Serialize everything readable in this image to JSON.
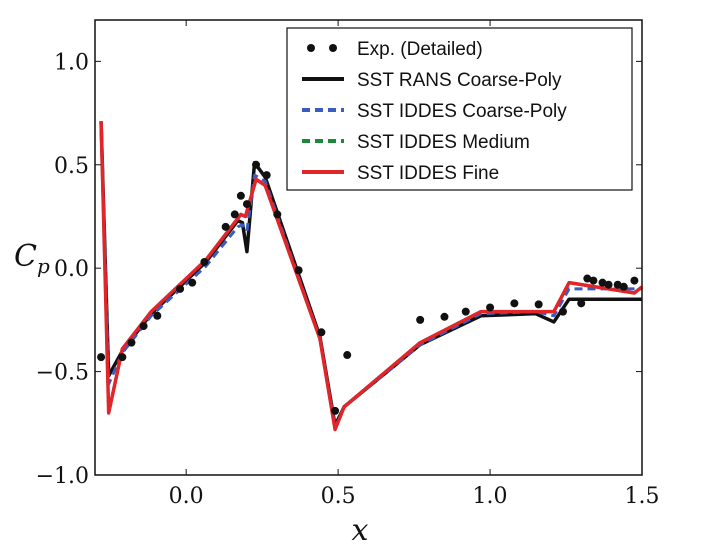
{
  "chart_data": {
    "type": "line",
    "title": "",
    "xlabel": "x",
    "ylabel": "C",
    "ylabel_sub": "p",
    "xlim": [
      -0.3,
      1.5
    ],
    "ylim": [
      -1.0,
      1.2
    ],
    "xticks": [
      0.0,
      0.5,
      1.0,
      1.5
    ],
    "xtick_labels": [
      "0.0",
      "0.5",
      "1.0",
      "1.5"
    ],
    "yticks": [
      -1.0,
      -0.5,
      0.0,
      0.5,
      1.0
    ],
    "ytick_labels": [
      "−1.0",
      "−0.5",
      "0.0",
      "0.5",
      "1.0"
    ],
    "grid": false,
    "legend_placement": "top-right",
    "series": [
      {
        "name": "Exp. (Detailed)",
        "style": "markers",
        "color": "#111111",
        "x": [
          -0.28,
          -0.21,
          -0.18,
          -0.14,
          -0.095,
          -0.02,
          0.02,
          0.06,
          0.13,
          0.16,
          0.18,
          0.2,
          0.23,
          0.265,
          0.3,
          0.37,
          0.445,
          0.53,
          0.49,
          0.77,
          0.85,
          0.92,
          1.0,
          1.08,
          1.16,
          1.24,
          1.3,
          1.32,
          1.34,
          1.37,
          1.39,
          1.42,
          1.44,
          1.475
        ],
        "y": [
          -0.43,
          -0.43,
          -0.36,
          -0.28,
          -0.23,
          -0.1,
          -0.07,
          0.03,
          0.2,
          0.26,
          0.35,
          0.31,
          0.5,
          0.45,
          0.26,
          -0.01,
          -0.31,
          -0.42,
          -0.69,
          -0.25,
          -0.235,
          -0.21,
          -0.19,
          -0.17,
          -0.175,
          -0.21,
          -0.17,
          -0.05,
          -0.06,
          -0.07,
          -0.08,
          -0.08,
          -0.09,
          -0.06
        ]
      },
      {
        "name": "SST RANS Coarse-Poly",
        "style": "solid",
        "color": "#111111",
        "x": [
          -0.28,
          -0.255,
          -0.21,
          -0.115,
          0.065,
          0.17,
          0.185,
          0.2,
          0.225,
          0.26,
          0.44,
          0.49,
          0.52,
          0.77,
          0.97,
          1.15,
          1.21,
          1.26,
          1.5
        ],
        "y": [
          0.71,
          -0.52,
          -0.4,
          -0.22,
          0.03,
          0.23,
          0.22,
          0.08,
          0.51,
          0.44,
          -0.33,
          -0.76,
          -0.67,
          -0.37,
          -0.23,
          -0.22,
          -0.26,
          -0.15,
          -0.15
        ]
      },
      {
        "name": "SST IDDES Coarse-Poly",
        "style": "dashed",
        "color": "#3a5bbf",
        "x": [
          -0.28,
          -0.255,
          -0.21,
          -0.115,
          0.065,
          0.17,
          0.185,
          0.2,
          0.225,
          0.26,
          0.44,
          0.49,
          0.52,
          0.77,
          0.97,
          1.15,
          1.21,
          1.26,
          1.5
        ],
        "y": [
          0.71,
          -0.56,
          -0.41,
          -0.23,
          0.01,
          0.2,
          0.21,
          0.18,
          0.45,
          0.42,
          -0.34,
          -0.77,
          -0.67,
          -0.37,
          -0.22,
          -0.21,
          -0.23,
          -0.1,
          -0.1
        ]
      },
      {
        "name": "SST IDDES Medium",
        "style": "dashed",
        "color": "#1a8a3a",
        "x": [
          -0.28,
          -0.255,
          -0.21,
          -0.115,
          0.065,
          0.18,
          0.195,
          0.23,
          0.26,
          0.44,
          0.49,
          0.52,
          0.77,
          0.97,
          1.21,
          1.26,
          1.475,
          1.5
        ],
        "y": [
          0.71,
          -0.7,
          -0.39,
          -0.21,
          0.04,
          0.26,
          0.25,
          0.43,
          0.4,
          -0.34,
          -0.78,
          -0.67,
          -0.36,
          -0.21,
          -0.21,
          -0.07,
          -0.12,
          -0.09
        ]
      },
      {
        "name": "SST IDDES Fine",
        "style": "solid",
        "color": "#e0262a",
        "x": [
          -0.28,
          -0.255,
          -0.21,
          -0.115,
          0.065,
          0.18,
          0.195,
          0.23,
          0.26,
          0.44,
          0.49,
          0.52,
          0.77,
          0.97,
          1.21,
          1.26,
          1.475,
          1.5
        ],
        "y": [
          0.71,
          -0.7,
          -0.39,
          -0.21,
          0.04,
          0.26,
          0.25,
          0.43,
          0.4,
          -0.34,
          -0.78,
          -0.67,
          -0.36,
          -0.21,
          -0.21,
          -0.07,
          -0.12,
          -0.09
        ]
      }
    ]
  }
}
